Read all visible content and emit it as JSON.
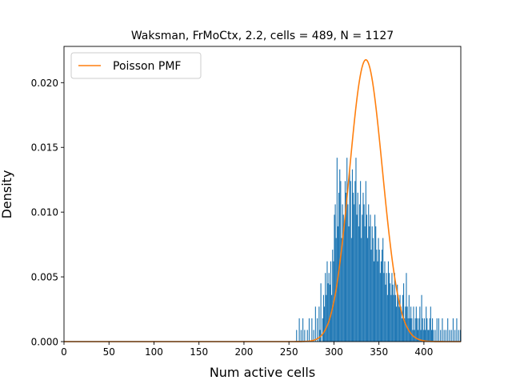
{
  "chart_data": {
    "type": "histogram",
    "title": "Waksman, FrMoCtx, 2.2, cells = 489, N = 1127",
    "xlabel": "Num active cells",
    "ylabel": "Density",
    "xlim": [
      0,
      441
    ],
    "ylim": [
      0,
      0.0228
    ],
    "xticks": [
      "0",
      "50",
      "100",
      "150",
      "200",
      "250",
      "300",
      "350",
      "400"
    ],
    "yticks": [
      "0.000",
      "0.005",
      "0.010",
      "0.015",
      "0.020"
    ],
    "legend": {
      "location": "upper left",
      "entries": [
        "Poisson PMF"
      ]
    },
    "colors": {
      "bars": "#1f77b4",
      "curve": "#ff7f0e"
    },
    "series": [
      {
        "name": "histogram",
        "kind": "bar",
        "bin_width": 1,
        "x": [
          258,
          261,
          263,
          265,
          267,
          270,
          272,
          275,
          277,
          279,
          281,
          283,
          284,
          285,
          287,
          288,
          289,
          290,
          291,
          292,
          293,
          294,
          295,
          296,
          297,
          298,
          299,
          300,
          301,
          302,
          303,
          304,
          305,
          306,
          307,
          308,
          309,
          310,
          311,
          312,
          313,
          314,
          315,
          316,
          317,
          318,
          319,
          320,
          321,
          322,
          323,
          324,
          325,
          326,
          327,
          328,
          329,
          330,
          331,
          332,
          333,
          334,
          335,
          336,
          337,
          338,
          339,
          340,
          341,
          342,
          343,
          344,
          345,
          346,
          347,
          348,
          349,
          350,
          351,
          352,
          353,
          354,
          355,
          356,
          357,
          358,
          359,
          360,
          361,
          362,
          363,
          364,
          365,
          366,
          367,
          368,
          369,
          370,
          371,
          372,
          373,
          374,
          375,
          376,
          377,
          378,
          379,
          380,
          381,
          382,
          383,
          384,
          385,
          386,
          387,
          388,
          389,
          390,
          391,
          392,
          393,
          394,
          395,
          396,
          397,
          398,
          399,
          400,
          401,
          402,
          403,
          404,
          405,
          406,
          407,
          408,
          409,
          410,
          412,
          414,
          416,
          418,
          420,
          422,
          424,
          426,
          428,
          430,
          432,
          434,
          436,
          438,
          440
        ],
        "values": [
          0.0009,
          0.0018,
          0.0009,
          0.0018,
          0.0009,
          0.0009,
          0.0018,
          0.0018,
          0.0009,
          0.0027,
          0.0018,
          0.0027,
          0.0009,
          0.0045,
          0.0018,
          0.0036,
          0.0027,
          0.0053,
          0.0036,
          0.0062,
          0.0045,
          0.0053,
          0.0044,
          0.0062,
          0.0036,
          0.0071,
          0.0062,
          0.0098,
          0.0106,
          0.008,
          0.0142,
          0.0089,
          0.0115,
          0.0133,
          0.0124,
          0.008,
          0.0106,
          0.0098,
          0.0089,
          0.0124,
          0.0115,
          0.0142,
          0.0106,
          0.0089,
          0.0133,
          0.0124,
          0.008,
          0.0133,
          0.0115,
          0.0106,
          0.0124,
          0.0142,
          0.0098,
          0.0115,
          0.0089,
          0.0106,
          0.0124,
          0.008,
          0.0098,
          0.0115,
          0.0106,
          0.0089,
          0.0124,
          0.0098,
          0.008,
          0.0106,
          0.0089,
          0.0098,
          0.0071,
          0.0089,
          0.008,
          0.0062,
          0.0098,
          0.0089,
          0.0071,
          0.0062,
          0.008,
          0.0071,
          0.0053,
          0.0062,
          0.0071,
          0.008,
          0.0053,
          0.0062,
          0.0044,
          0.0053,
          0.0036,
          0.0062,
          0.0053,
          0.0045,
          0.0036,
          0.0053,
          0.0044,
          0.0036,
          0.0053,
          0.0036,
          0.0027,
          0.0044,
          0.0036,
          0.0027,
          0.0036,
          0.0027,
          0.0018,
          0.0036,
          0.0045,
          0.0018,
          0.0027,
          0.0053,
          0.0027,
          0.0018,
          0.0036,
          0.0018,
          0.0027,
          0.0018,
          0.0009,
          0.0027,
          0.0009,
          0.0018,
          0.0027,
          0.0018,
          0.0009,
          0.0018,
          0.0027,
          0.0009,
          0.0036,
          0.0018,
          0.0009,
          0.0018,
          0.0009,
          0.0027,
          0.0018,
          0.0009,
          0.0009,
          0.0018,
          0.0027,
          0.0009,
          0.0018,
          0.0009,
          0.0009,
          0.0018,
          0.0018,
          0.0009,
          0.0018,
          0.0009,
          0.0009,
          0.0018,
          0.0009,
          0.0009,
          0.0018,
          0.0009,
          0.0018,
          0.0009,
          0.0009
        ]
      },
      {
        "name": "Poisson PMF",
        "kind": "line",
        "mean": 336,
        "x_range": [
          0,
          441
        ]
      }
    ]
  }
}
